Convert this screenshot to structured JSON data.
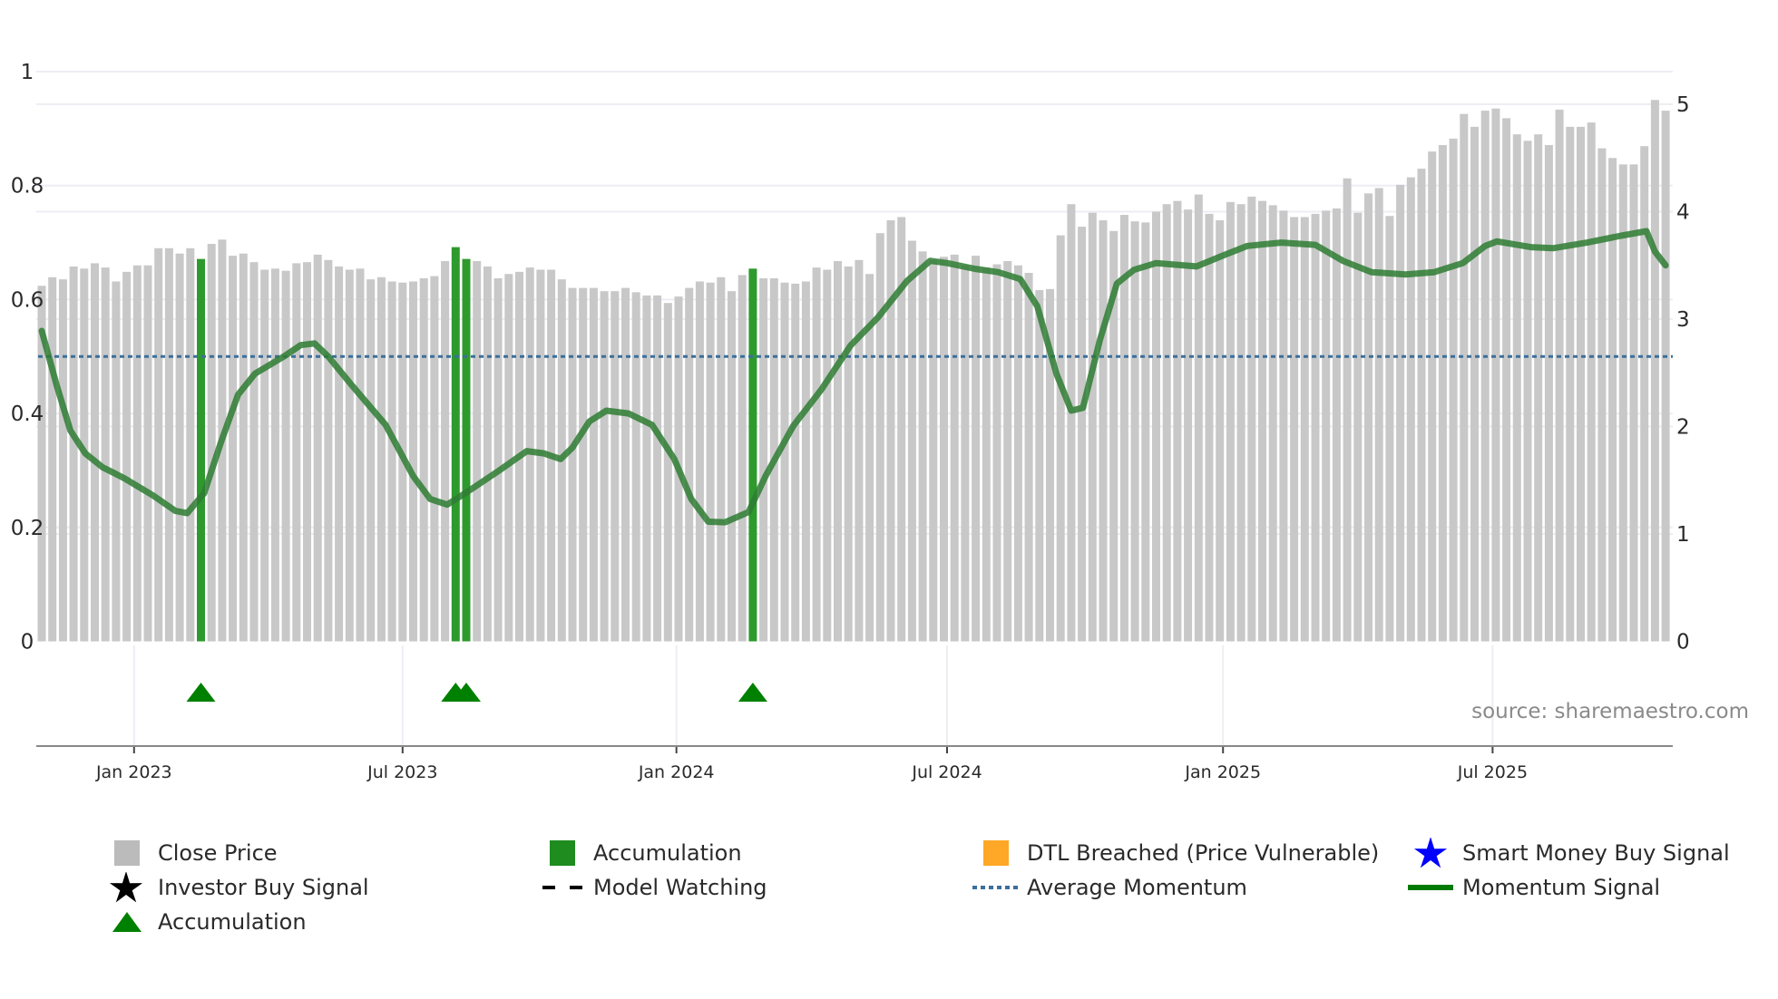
{
  "chart_data": {
    "type": "bar",
    "title": "",
    "xlabel": "",
    "ylabel_left": "",
    "ylabel_right": "",
    "x_frequency": "weekly",
    "left_axis": {
      "range": [
        0,
        1
      ],
      "ticks": [
        0,
        0.2,
        0.4,
        0.6,
        0.8,
        1
      ],
      "tick_labels": [
        "0",
        "0.2",
        "0.4",
        "0.6",
        "0.8",
        "1"
      ]
    },
    "right_axis": {
      "range": [
        0,
        5
      ],
      "ticks": [
        0,
        1,
        2,
        3,
        4,
        5
      ],
      "tick_labels": [
        "0",
        "1",
        "2",
        "3",
        "4",
        "5"
      ]
    },
    "x_ticks": [
      {
        "label": "Jan 2023",
        "index": 8.7
      },
      {
        "label": "Jul 2023",
        "index": 34.0
      },
      {
        "label": "Jan 2024",
        "index": 59.8
      },
      {
        "label": "Jul 2024",
        "index": 85.3
      },
      {
        "label": "Jan 2025",
        "index": 111.3
      },
      {
        "label": "Jul 2025",
        "index": 136.7
      }
    ],
    "close_price": [
      3.31,
      3.39,
      3.37,
      3.49,
      3.47,
      3.52,
      3.48,
      3.35,
      3.44,
      3.5,
      3.5,
      3.66,
      3.66,
      3.61,
      3.66,
      3.56,
      3.7,
      3.74,
      3.59,
      3.61,
      3.53,
      3.46,
      3.47,
      3.45,
      3.52,
      3.53,
      3.6,
      3.55,
      3.49,
      3.46,
      3.47,
      3.37,
      3.39,
      3.35,
      3.34,
      3.35,
      3.38,
      3.4,
      3.54,
      3.67,
      3.56,
      3.54,
      3.49,
      3.38,
      3.42,
      3.44,
      3.48,
      3.46,
      3.46,
      3.37,
      3.29,
      3.29,
      3.29,
      3.26,
      3.26,
      3.29,
      3.25,
      3.22,
      3.22,
      3.15,
      3.21,
      3.29,
      3.35,
      3.34,
      3.39,
      3.26,
      3.41,
      3.47,
      3.38,
      3.38,
      3.34,
      3.33,
      3.35,
      3.48,
      3.46,
      3.54,
      3.49,
      3.55,
      3.42,
      3.8,
      3.92,
      3.95,
      3.73,
      3.63,
      3.55,
      3.58,
      3.6,
      3.5,
      3.59,
      3.48,
      3.51,
      3.54,
      3.5,
      3.43,
      3.27,
      3.28,
      3.78,
      4.07,
      3.86,
      3.99,
      3.92,
      3.82,
      3.97,
      3.91,
      3.9,
      4.0,
      4.07,
      4.1,
      4.02,
      4.16,
      3.98,
      3.92,
      4.09,
      4.07,
      4.14,
      4.1,
      4.06,
      4.01,
      3.95,
      3.95,
      3.98,
      4.01,
      4.03,
      4.31,
      3.99,
      4.17,
      4.22,
      3.96,
      4.25,
      4.32,
      4.4,
      4.56,
      4.62,
      4.68,
      4.91,
      4.79,
      4.94,
      4.96,
      4.87,
      4.72,
      4.66,
      4.72,
      4.62,
      4.95,
      4.79,
      4.79,
      4.83,
      4.59,
      4.5,
      4.44,
      4.44,
      4.61,
      5.04,
      4.94
    ],
    "accumulation_bar_indices": [
      15,
      39,
      40,
      67
    ],
    "accumulation_triangle_indices": [
      15,
      39,
      40,
      67
    ],
    "average_momentum": 0.5,
    "momentum_signal": [
      [
        0,
        0.545
      ],
      [
        1.4,
        0.45
      ],
      [
        2.7,
        0.37
      ],
      [
        4.1,
        0.33
      ],
      [
        5.7,
        0.306
      ],
      [
        7.8,
        0.286
      ],
      [
        10.5,
        0.256
      ],
      [
        12.6,
        0.229
      ],
      [
        13.7,
        0.225
      ],
      [
        15.3,
        0.26
      ],
      [
        16.9,
        0.35
      ],
      [
        18.5,
        0.433
      ],
      [
        20.1,
        0.47
      ],
      [
        22.8,
        0.5
      ],
      [
        24.4,
        0.52
      ],
      [
        25.7,
        0.523
      ],
      [
        27.0,
        0.5
      ],
      [
        29.2,
        0.45
      ],
      [
        32.4,
        0.38
      ],
      [
        35.0,
        0.29
      ],
      [
        36.6,
        0.25
      ],
      [
        38.2,
        0.24
      ],
      [
        39.9,
        0.26
      ],
      [
        43.1,
        0.3
      ],
      [
        45.7,
        0.334
      ],
      [
        47.3,
        0.33
      ],
      [
        48.9,
        0.32
      ],
      [
        50.0,
        0.34
      ],
      [
        51.6,
        0.386
      ],
      [
        53.2,
        0.405
      ],
      [
        55.3,
        0.4
      ],
      [
        57.5,
        0.38
      ],
      [
        59.6,
        0.32
      ],
      [
        61.2,
        0.25
      ],
      [
        62.8,
        0.21
      ],
      [
        64.4,
        0.209
      ],
      [
        66.6,
        0.227
      ],
      [
        68.2,
        0.29
      ],
      [
        70.8,
        0.378
      ],
      [
        73.5,
        0.443
      ],
      [
        76.2,
        0.519
      ],
      [
        78.8,
        0.569
      ],
      [
        81.5,
        0.632
      ],
      [
        83.7,
        0.668
      ],
      [
        85.3,
        0.664
      ],
      [
        87.9,
        0.654
      ],
      [
        90.1,
        0.648
      ],
      [
        92.2,
        0.636
      ],
      [
        93.8,
        0.588
      ],
      [
        95.6,
        0.47
      ],
      [
        97.0,
        0.405
      ],
      [
        98.1,
        0.41
      ],
      [
        99.7,
        0.529
      ],
      [
        101.3,
        0.628
      ],
      [
        102.9,
        0.652
      ],
      [
        105.0,
        0.664
      ],
      [
        108.8,
        0.658
      ],
      [
        111.4,
        0.678
      ],
      [
        113.6,
        0.694
      ],
      [
        116.8,
        0.7
      ],
      [
        120.0,
        0.696
      ],
      [
        122.6,
        0.668
      ],
      [
        125.3,
        0.648
      ],
      [
        128.5,
        0.644
      ],
      [
        131.2,
        0.648
      ],
      [
        133.9,
        0.664
      ],
      [
        136.0,
        0.694
      ],
      [
        137.1,
        0.702
      ],
      [
        140.3,
        0.692
      ],
      [
        142.4,
        0.69
      ],
      [
        145.6,
        0.7
      ],
      [
        148.8,
        0.712
      ],
      [
        151.2,
        0.72
      ],
      [
        152.0,
        0.684
      ],
      [
        153.0,
        0.66
      ]
    ],
    "colors": {
      "close_price": "#c8c8c8",
      "accumulation": "#2e9a2e",
      "triangle": "#008000",
      "momentum": "#2e7d32",
      "average": "#3b6f9c",
      "dtl": "#ffa726",
      "smart_money": "#0000ff",
      "investor": "#000000"
    },
    "annotation": "source: sharemaestro.com",
    "legend_placement": "bottom",
    "legend": [
      {
        "label": "Close Price",
        "icon": "gray-square"
      },
      {
        "label": "Accumulation",
        "icon": "green-square"
      },
      {
        "label": "DTL Breached (Price Vulnerable)",
        "icon": "orange-square"
      },
      {
        "label": "Smart Money Buy Signal",
        "icon": "blue-star"
      },
      {
        "label": "Investor Buy Signal",
        "icon": "black-star"
      },
      {
        "label": "Model Watching",
        "icon": "black-dashed-line"
      },
      {
        "label": "Average Momentum",
        "icon": "blue-dotted-line"
      },
      {
        "label": "Momentum Signal",
        "icon": "green-line"
      },
      {
        "label": "Accumulation",
        "icon": "green-triangle"
      }
    ]
  }
}
